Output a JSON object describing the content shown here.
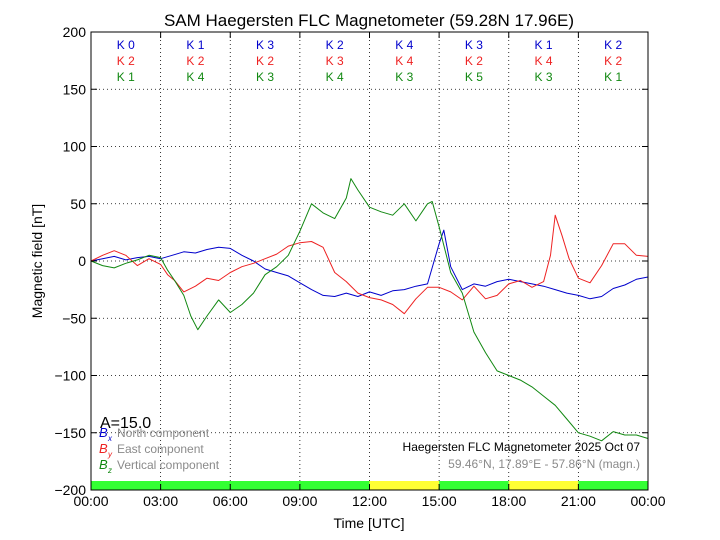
{
  "chart_data": {
    "type": "line",
    "title": "SAM Haegersten FLC Magnetometer (59.28N 17.96E)",
    "xlabel": "Time [UTC]",
    "ylabel": "Magnetic field [nT]",
    "xlim": [
      0,
      24
    ],
    "ylim": [
      -200,
      200
    ],
    "x_ticks": [
      0,
      3,
      6,
      9,
      12,
      15,
      18,
      21,
      24
    ],
    "x_tick_labels": [
      "00:00",
      "03:00",
      "06:00",
      "09:00",
      "12:00",
      "15:00",
      "18:00",
      "21:00",
      "00:00"
    ],
    "y_ticks": [
      200,
      150,
      100,
      50,
      0,
      -50,
      -100,
      -150,
      -200
    ],
    "y_tick_labels": [
      "200",
      "150",
      "100",
      "50",
      "0",
      "−50",
      "−100",
      "−150",
      "−200"
    ],
    "grid": true,
    "activity_index": "A=15.0",
    "k_indices": {
      "x_component": [
        "K 0",
        "K 1",
        "K 3",
        "K 2",
        "K 4",
        "K 3",
        "K 1",
        "K 2"
      ],
      "y_component": [
        "K 2",
        "K 2",
        "K 2",
        "K 3",
        "K 4",
        "K 2",
        "K 4",
        "K 2"
      ],
      "z_component": [
        "K 1",
        "K 4",
        "K 3",
        "K 4",
        "K 3",
        "K 5",
        "K 3",
        "K 1"
      ]
    },
    "activity_bar": [
      {
        "start": 0,
        "end": 12,
        "color": "#33ff33"
      },
      {
        "start": 12,
        "end": 15,
        "color": "#ffff33"
      },
      {
        "start": 15,
        "end": 18,
        "color": "#33ff33"
      },
      {
        "start": 18,
        "end": 21,
        "color": "#ffff33"
      },
      {
        "start": 21,
        "end": 24,
        "color": "#33ff33"
      }
    ],
    "legend": {
      "placement": "lower-left",
      "entries": [
        {
          "symbol": "B",
          "subscript": "x",
          "label": "North component",
          "color": "#0000cc"
        },
        {
          "symbol": "B",
          "subscript": "y",
          "label": "East component",
          "color": "#ee2222"
        },
        {
          "symbol": "B",
          "subscript": "z",
          "label": "Vertical component",
          "color": "#118811"
        }
      ]
    },
    "annotation": {
      "station": "Haegersten FLC Magnetometer 2025 Oct 07",
      "coords": "59.46°N, 17.89°E - 57.86°N (magn.)"
    },
    "series": [
      {
        "name": "North component",
        "color": "#0000cc",
        "x": [
          0,
          0.5,
          1,
          1.5,
          2,
          2.5,
          3,
          3.5,
          4,
          4.5,
          5,
          5.5,
          6,
          6.5,
          7,
          7.5,
          8,
          8.5,
          9,
          9.5,
          10,
          10.5,
          11,
          11.5,
          12,
          12.5,
          13,
          13.5,
          14,
          14.5,
          15,
          15.2,
          15.5,
          16,
          16.5,
          17,
          17.5,
          18,
          18.5,
          19,
          19.5,
          20,
          20.5,
          21,
          21.5,
          22,
          22.5,
          23,
          23.5,
          24
        ],
        "y": [
          0,
          2,
          4,
          1,
          3,
          4,
          2,
          5,
          8,
          7,
          10,
          12,
          11,
          5,
          0,
          -7,
          -10,
          -13,
          -19,
          -25,
          -30,
          -31,
          -28,
          -31,
          -27,
          -30,
          -26,
          -25,
          -22,
          -20,
          15,
          27,
          -5,
          -25,
          -20,
          -22,
          -18,
          -16,
          -18,
          -20,
          -22,
          -25,
          -28,
          -30,
          -33,
          -31,
          -24,
          -21,
          -16,
          -14
        ]
      },
      {
        "name": "East component",
        "color": "#ee2222",
        "x": [
          0,
          0.5,
          1,
          1.5,
          2,
          2.5,
          3,
          3.3,
          3.6,
          4,
          4.5,
          5,
          5.5,
          6,
          6.5,
          7,
          7.5,
          8,
          8.5,
          9,
          9.5,
          10,
          10.5,
          11,
          11.5,
          12,
          12.5,
          13,
          13.5,
          14,
          14.5,
          15,
          15.5,
          16,
          16.5,
          17,
          17.5,
          18,
          18.5,
          19,
          19.5,
          19.8,
          20,
          20.3,
          20.6,
          21,
          21.5,
          22,
          22.5,
          23,
          23.5,
          24
        ],
        "y": [
          0,
          5,
          9,
          5,
          -4,
          2,
          -3,
          -12,
          -17,
          -27,
          -22,
          -15,
          -17,
          -10,
          -5,
          -2,
          2,
          6,
          13,
          16,
          17,
          12,
          -10,
          -18,
          -28,
          -32,
          -34,
          -38,
          -46,
          -33,
          -23,
          -23,
          -27,
          -34,
          -22,
          -33,
          -30,
          -20,
          -17,
          -23,
          -18,
          5,
          40,
          22,
          2,
          -15,
          -19,
          -4,
          15,
          15,
          5,
          4
        ]
      },
      {
        "name": "Vertical component",
        "color": "#118811",
        "x": [
          0,
          0.5,
          1,
          1.5,
          2,
          2.5,
          3,
          3.3,
          3.6,
          4,
          4.3,
          4.6,
          5,
          5.5,
          6,
          6.5,
          7,
          7.5,
          8,
          8.5,
          9,
          9.5,
          10,
          10.5,
          11,
          11.2,
          11.5,
          12,
          12.5,
          13,
          13.5,
          14,
          14.5,
          14.7,
          15,
          15.5,
          16,
          16.5,
          17,
          17.5,
          18,
          18.5,
          19,
          19.5,
          20,
          20.5,
          21,
          21.5,
          22,
          22.5,
          23,
          23.5,
          24
        ],
        "y": [
          0,
          -4,
          -6,
          -2,
          1,
          5,
          3,
          -8,
          -17,
          -30,
          -48,
          -60,
          -48,
          -34,
          -45,
          -38,
          -28,
          -12,
          -5,
          5,
          26,
          50,
          42,
          37,
          55,
          72,
          62,
          47,
          43,
          40,
          50,
          35,
          50,
          52,
          30,
          -10,
          -28,
          -62,
          -80,
          -96,
          -100,
          -104,
          -110,
          -118,
          -126,
          -138,
          -150,
          -153,
          -157,
          -149,
          -152,
          -152,
          -155
        ]
      }
    ]
  }
}
